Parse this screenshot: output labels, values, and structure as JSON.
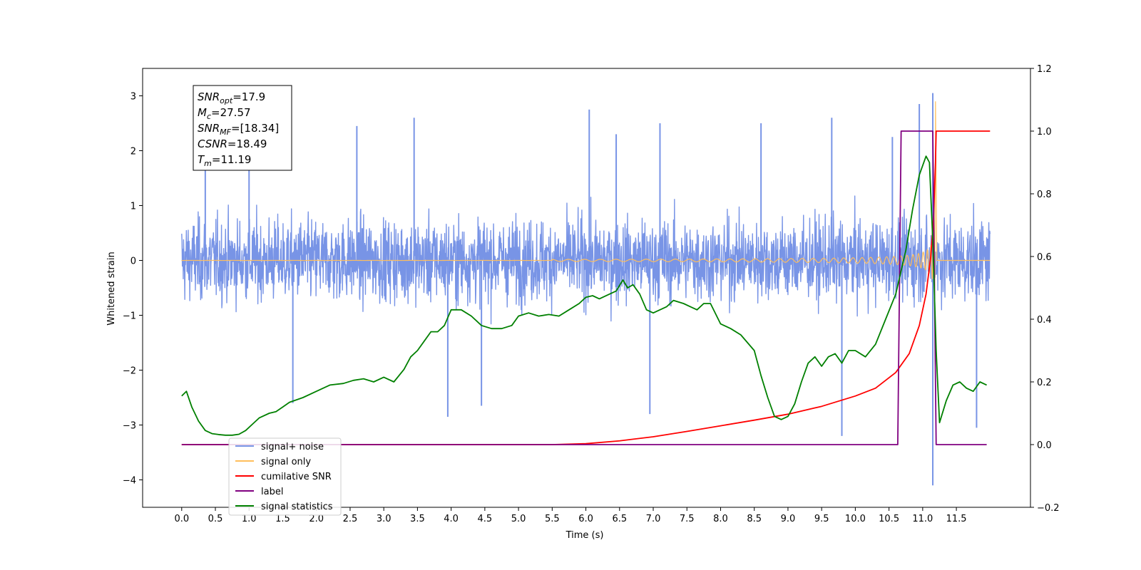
{
  "chart_data": {
    "type": "line",
    "xlabel": "Time (s)",
    "ylabel": "Whitened strain",
    "xlim": [
      -0.58,
      12.6
    ],
    "ylim": [
      -4.5,
      3.5
    ],
    "y2lim": [
      -0.2,
      1.2
    ],
    "x_ticks": [
      "0.0",
      "0.5",
      "1.0",
      "1.5",
      "2.0",
      "2.5",
      "3.0",
      "3.5",
      "4.0",
      "4.5",
      "5.0",
      "5.5",
      "6.0",
      "6.5",
      "7.0",
      "7.5",
      "8.0",
      "8.5",
      "9.0",
      "9.5",
      "10.0",
      "10.5",
      "11.0",
      "11.5"
    ],
    "y_ticks": [
      "3",
      "2",
      "1",
      "0",
      "−1",
      "−2",
      "−3",
      "−4"
    ],
    "y2_ticks": [
      "1.2",
      "1.0",
      "0.8",
      "0.6",
      "0.4",
      "0.2",
      "0.0",
      "−0.2"
    ],
    "grid": false,
    "legend_position": "lower-left",
    "annotation": {
      "lines": [
        {
          "var": "SNR",
          "sub": "opt",
          "rest": "=17.9"
        },
        {
          "var": "M",
          "sub": "c",
          "rest": "=27.57"
        },
        {
          "var": "SNR",
          "sub": "MF",
          "rest": "=[18.34]"
        },
        {
          "var": "CSNR",
          "sub": "",
          "rest": "=18.49"
        },
        {
          "var": "T",
          "sub": "m",
          "rest": "=11.19"
        }
      ]
    },
    "series": [
      {
        "name": "signal+ noise",
        "color": "#7894e6",
        "axis": "left",
        "description_range": {
          "x_start": 0.0,
          "x_end": 12.0,
          "typical_min": -1.5,
          "typical_max": 1.5
        },
        "spikes": [
          [
            0.35,
            1.9
          ],
          [
            1.0,
            2.05
          ],
          [
            1.65,
            -2.6
          ],
          [
            2.6,
            2.45
          ],
          [
            3.45,
            2.6
          ],
          [
            3.95,
            -2.85
          ],
          [
            4.45,
            -2.65
          ],
          [
            6.05,
            2.75
          ],
          [
            6.45,
            2.3
          ],
          [
            6.95,
            -2.8
          ],
          [
            7.1,
            2.5
          ],
          [
            8.6,
            2.5
          ],
          [
            9.65,
            2.6
          ],
          [
            9.8,
            -3.2
          ],
          [
            10.55,
            2.25
          ],
          [
            10.95,
            2.85
          ],
          [
            11.15,
            3.05
          ],
          [
            11.15,
            -4.1
          ],
          [
            11.8,
            -3.05
          ]
        ]
      },
      {
        "name": "signal only",
        "color": "#ffbe5c",
        "axis": "left",
        "merger_time": 11.19,
        "peak": 2.9
      },
      {
        "name": "cumilative SNR",
        "color": "#ff0000",
        "axis": "right",
        "x": [
          0.0,
          5.5,
          6.0,
          6.5,
          7.0,
          7.5,
          8.0,
          8.5,
          9.0,
          9.5,
          10.0,
          10.3,
          10.6,
          10.8,
          10.95,
          11.05,
          11.12,
          11.16,
          11.19,
          11.2,
          12.0
        ],
        "values": [
          0.0,
          0.0,
          0.003,
          0.012,
          0.025,
          0.042,
          0.06,
          0.078,
          0.097,
          0.122,
          0.155,
          0.18,
          0.23,
          0.29,
          0.38,
          0.48,
          0.6,
          0.72,
          0.9,
          1.0,
          1.0
        ]
      },
      {
        "name": "label",
        "color": "#800080",
        "axis": "right",
        "x": [
          0.0,
          10.63,
          10.68,
          11.15,
          11.2,
          11.95
        ],
        "values": [
          0.0,
          0.0,
          1.0,
          1.0,
          0.0,
          0.0
        ]
      },
      {
        "name": "signal statistics",
        "color": "#008000",
        "axis": "right",
        "x": [
          0.0,
          0.07,
          0.15,
          0.25,
          0.35,
          0.45,
          0.55,
          0.65,
          0.75,
          0.85,
          0.95,
          1.05,
          1.15,
          1.3,
          1.4,
          1.5,
          1.6,
          1.8,
          2.0,
          2.2,
          2.4,
          2.55,
          2.7,
          2.85,
          3.0,
          3.15,
          3.3,
          3.4,
          3.5,
          3.6,
          3.7,
          3.8,
          3.9,
          4.0,
          4.15,
          4.3,
          4.45,
          4.6,
          4.75,
          4.9,
          5.0,
          5.15,
          5.3,
          5.45,
          5.6,
          5.75,
          5.9,
          6.0,
          6.1,
          6.2,
          6.35,
          6.45,
          6.55,
          6.62,
          6.7,
          6.8,
          6.9,
          7.0,
          7.1,
          7.2,
          7.3,
          7.45,
          7.55,
          7.65,
          7.75,
          7.85,
          8.0,
          8.15,
          8.3,
          8.5,
          8.6,
          8.7,
          8.8,
          8.9,
          9.0,
          9.1,
          9.2,
          9.3,
          9.4,
          9.5,
          9.6,
          9.7,
          9.8,
          9.9,
          10.0,
          10.15,
          10.3,
          10.45,
          10.6,
          10.75,
          10.85,
          10.95,
          11.05,
          11.1,
          11.15,
          11.2,
          11.25,
          11.35,
          11.45,
          11.55,
          11.65,
          11.75,
          11.85,
          11.95
        ],
        "values": [
          0.155,
          0.17,
          0.12,
          0.075,
          0.045,
          0.035,
          0.032,
          0.03,
          0.03,
          0.033,
          0.045,
          0.065,
          0.085,
          0.1,
          0.105,
          0.12,
          0.135,
          0.15,
          0.17,
          0.19,
          0.195,
          0.205,
          0.21,
          0.2,
          0.215,
          0.2,
          0.24,
          0.28,
          0.3,
          0.33,
          0.36,
          0.36,
          0.38,
          0.43,
          0.43,
          0.41,
          0.38,
          0.37,
          0.37,
          0.38,
          0.41,
          0.42,
          0.41,
          0.415,
          0.41,
          0.43,
          0.45,
          0.47,
          0.475,
          0.465,
          0.48,
          0.49,
          0.525,
          0.5,
          0.51,
          0.48,
          0.43,
          0.42,
          0.43,
          0.44,
          0.46,
          0.45,
          0.44,
          0.43,
          0.45,
          0.45,
          0.385,
          0.37,
          0.35,
          0.3,
          0.22,
          0.15,
          0.09,
          0.08,
          0.09,
          0.13,
          0.2,
          0.26,
          0.28,
          0.25,
          0.28,
          0.29,
          0.26,
          0.3,
          0.3,
          0.28,
          0.32,
          0.4,
          0.48,
          0.62,
          0.75,
          0.86,
          0.92,
          0.9,
          0.65,
          0.3,
          0.07,
          0.14,
          0.19,
          0.2,
          0.18,
          0.17,
          0.2,
          0.19
        ]
      }
    ]
  }
}
